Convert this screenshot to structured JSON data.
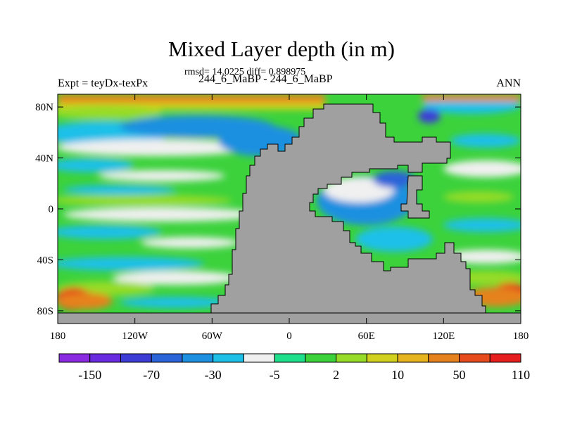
{
  "title": "Mixed Layer depth (in m)",
  "stats": "rmsd= 14.0225 diff= 0.898975",
  "subtitle": "244_6_MaBP - 244_6_MaBP",
  "left_label": "Expt = teyDx-texPx",
  "right_label": "ANN",
  "map": {
    "lon_range": [
      -180,
      180
    ],
    "lat_range": [
      -90,
      90
    ],
    "x_ticks": [
      {
        "lon": -180,
        "label": "180"
      },
      {
        "lon": -120,
        "label": "120W"
      },
      {
        "lon": -60,
        "label": "60W"
      },
      {
        "lon": 0,
        "label": "0"
      },
      {
        "lon": 60,
        "label": "60E"
      },
      {
        "lon": 120,
        "label": "120E"
      },
      {
        "lon": 180,
        "label": "180"
      }
    ],
    "y_ticks": [
      {
        "lat": 80,
        "label": "80N"
      },
      {
        "lat": 40,
        "label": "40N"
      },
      {
        "lat": 0,
        "label": "0"
      },
      {
        "lat": -40,
        "label": "40S"
      },
      {
        "lat": -80,
        "label": "80S"
      }
    ],
    "land_color": "#a0a0a0"
  },
  "colorbar": {
    "colors": [
      "#8a2be2",
      "#6a2ae0",
      "#3d3dd6",
      "#2a64d8",
      "#1e90e0",
      "#1ec0e8",
      "#f0f0f0",
      "#1ee08c",
      "#3cd23c",
      "#96dc28",
      "#d2d21e",
      "#e6b41e",
      "#e6821e",
      "#e64b1e",
      "#e61e1e"
    ],
    "labels": [
      {
        "after_box": 1,
        "label": "-150"
      },
      {
        "after_box": 3,
        "label": "-70"
      },
      {
        "after_box": 5,
        "label": "-30"
      },
      {
        "after_box": 7,
        "label": "-5"
      },
      {
        "after_box": 9,
        "label": "2"
      },
      {
        "after_box": 11,
        "label": "10"
      },
      {
        "after_box": 13,
        "label": "50"
      },
      {
        "after_box": 15,
        "label": "110"
      }
    ]
  }
}
